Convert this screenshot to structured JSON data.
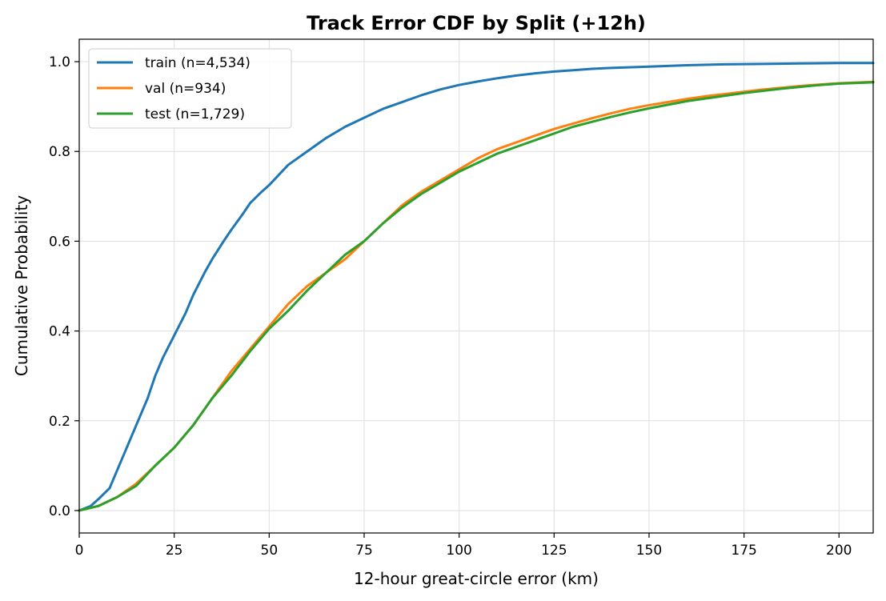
{
  "chart_data": {
    "type": "line",
    "title": "Track Error CDF by Split (+12h)",
    "xlabel": "12-hour great-circle error (km)",
    "ylabel": "Cumulative Probability",
    "xlim": [
      0,
      209
    ],
    "ylim": [
      -0.05,
      1.05
    ],
    "xticks": [
      0,
      25,
      50,
      75,
      100,
      125,
      150,
      175,
      200
    ],
    "yticks": [
      0.0,
      0.2,
      0.4,
      0.6,
      0.8,
      1.0
    ],
    "xtick_labels": [
      "0",
      "25",
      "50",
      "75",
      "100",
      "125",
      "150",
      "175",
      "200"
    ],
    "ytick_labels": [
      "0.0",
      "0.2",
      "0.4",
      "0.6",
      "0.8",
      "1.0"
    ],
    "grid": true,
    "legend_position": "top-left",
    "series": [
      {
        "name": "train (n=4,534)",
        "color": "#1f77b4",
        "x": [
          0,
          3,
          5,
          8,
          10,
          12,
          15,
          18,
          20,
          22,
          25,
          28,
          30,
          33,
          35,
          38,
          40,
          43,
          45,
          48,
          50,
          55,
          60,
          65,
          70,
          75,
          80,
          85,
          90,
          95,
          100,
          105,
          110,
          115,
          120,
          125,
          130,
          135,
          140,
          150,
          160,
          170,
          180,
          190,
          200,
          209
        ],
        "y": [
          0.0,
          0.01,
          0.025,
          0.05,
          0.09,
          0.13,
          0.19,
          0.25,
          0.3,
          0.34,
          0.39,
          0.44,
          0.48,
          0.53,
          0.56,
          0.6,
          0.625,
          0.66,
          0.685,
          0.71,
          0.725,
          0.77,
          0.8,
          0.83,
          0.855,
          0.875,
          0.895,
          0.91,
          0.925,
          0.938,
          0.948,
          0.956,
          0.963,
          0.969,
          0.974,
          0.978,
          0.981,
          0.984,
          0.986,
          0.989,
          0.992,
          0.994,
          0.995,
          0.996,
          0.997,
          0.997
        ]
      },
      {
        "name": "val (n=934)",
        "color": "#ff7f0e",
        "x": [
          0,
          5,
          10,
          15,
          20,
          25,
          30,
          35,
          40,
          45,
          50,
          55,
          60,
          65,
          70,
          75,
          80,
          85,
          90,
          95,
          100,
          105,
          110,
          115,
          120,
          125,
          130,
          135,
          140,
          145,
          150,
          155,
          160,
          165,
          170,
          175,
          180,
          185,
          190,
          195,
          200,
          209
        ],
        "y": [
          0.0,
          0.01,
          0.03,
          0.06,
          0.1,
          0.14,
          0.19,
          0.25,
          0.31,
          0.36,
          0.41,
          0.46,
          0.5,
          0.53,
          0.56,
          0.6,
          0.64,
          0.68,
          0.71,
          0.735,
          0.76,
          0.785,
          0.805,
          0.82,
          0.835,
          0.85,
          0.862,
          0.874,
          0.885,
          0.895,
          0.903,
          0.91,
          0.917,
          0.923,
          0.928,
          0.933,
          0.938,
          0.942,
          0.946,
          0.949,
          0.952,
          0.955
        ]
      },
      {
        "name": "test (n=1,729)",
        "color": "#2ca02c",
        "x": [
          0,
          5,
          10,
          15,
          20,
          25,
          30,
          35,
          40,
          45,
          50,
          55,
          60,
          65,
          70,
          75,
          80,
          85,
          90,
          95,
          100,
          105,
          110,
          115,
          120,
          125,
          130,
          135,
          140,
          145,
          150,
          155,
          160,
          165,
          170,
          175,
          180,
          185,
          190,
          195,
          200,
          209
        ],
        "y": [
          0.0,
          0.01,
          0.03,
          0.055,
          0.1,
          0.14,
          0.19,
          0.25,
          0.3,
          0.355,
          0.405,
          0.445,
          0.49,
          0.53,
          0.57,
          0.6,
          0.64,
          0.675,
          0.705,
          0.73,
          0.755,
          0.775,
          0.795,
          0.81,
          0.825,
          0.84,
          0.855,
          0.866,
          0.877,
          0.887,
          0.896,
          0.904,
          0.912,
          0.918,
          0.924,
          0.93,
          0.935,
          0.94,
          0.944,
          0.948,
          0.951,
          0.954
        ]
      }
    ]
  }
}
